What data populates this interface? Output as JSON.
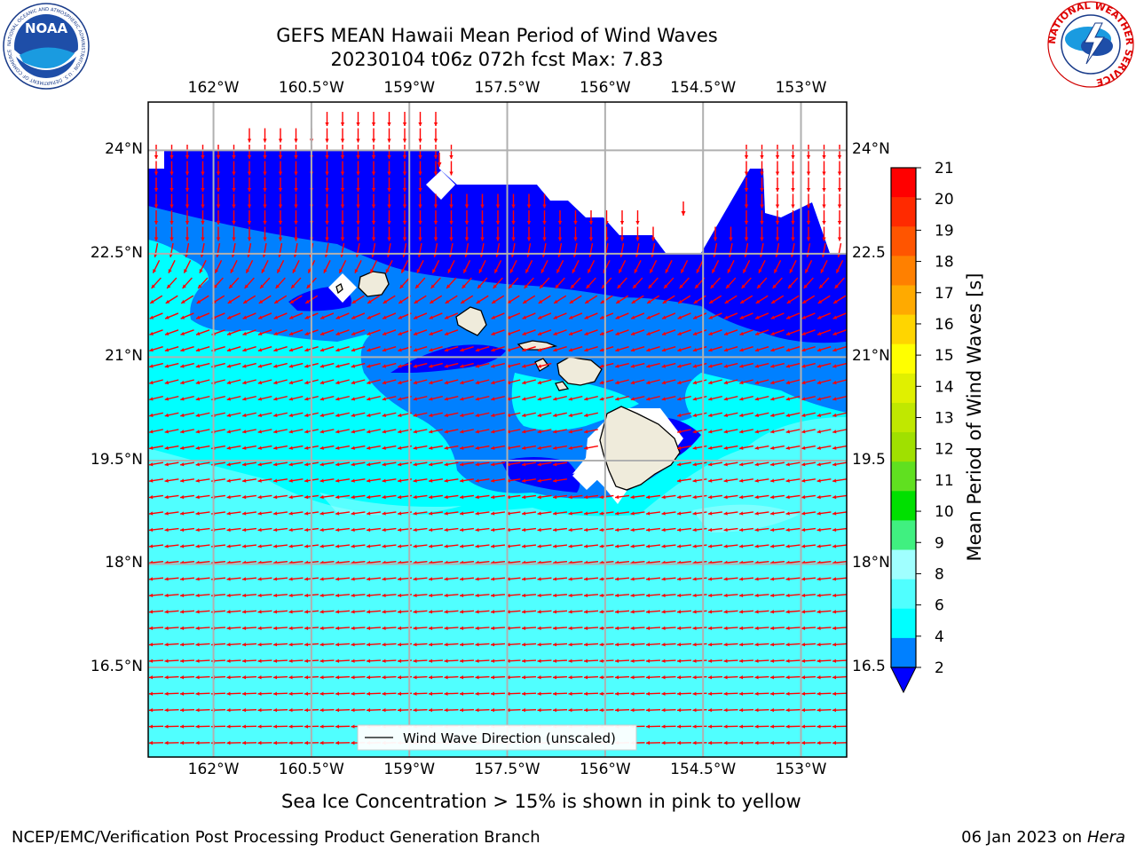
{
  "header": {
    "title_line1": "GEFS MEAN Hawaii Mean Period of Wind Waves",
    "title_line2": "20230104 t06z 072h fcst   Max: 7.83",
    "logo_left_text": "NOAA",
    "logo_left_ring": "NATIONAL OCEANIC AND ATMOSPHERIC ADMINISTRATION · U.S. DEPARTMENT OF COMMERCE",
    "logo_right_ring": "NATIONAL WEATHER SERVICE"
  },
  "map": {
    "lon_ticks": [
      "162°W",
      "160.5°W",
      "159°W",
      "157.5°W",
      "156°W",
      "154.5°W",
      "153°W"
    ],
    "lat_ticks_left": [
      "24°N",
      "22.5°N",
      "21°N",
      "19.5°N",
      "18°N",
      "16.5°N"
    ],
    "lat_ticks_right": [
      "24°N",
      "22.5",
      "21°N",
      "19.5",
      "18°N",
      "16.5"
    ],
    "legend_label": "Wind Wave Direction (unscaled)",
    "extent": {
      "lon_min": -163.0,
      "lon_max": -152.3,
      "lat_min": 15.2,
      "lat_max": 24.7
    },
    "land_color": "#efebdb",
    "arrow_color": "#ff0000"
  },
  "colorbar": {
    "label": "Mean Period of Wind Waves [s]",
    "ticks": [
      "21",
      "20",
      "19",
      "18",
      "17",
      "16",
      "15",
      "14",
      "13",
      "12",
      "11",
      "10",
      "9",
      "8",
      "6",
      "4",
      "2"
    ],
    "colors": [
      "#ff0000",
      "#ff2a00",
      "#ff5500",
      "#ff8000",
      "#ffaa00",
      "#ffd500",
      "#ffff00",
      "#e0f000",
      "#c0e800",
      "#a0e000",
      "#60e020",
      "#00e000",
      "#40f080",
      "#a0ffff",
      "#50ffff",
      "#00ffff",
      "#0080ff"
    ],
    "under_color": "#0000ff"
  },
  "footer": {
    "note": "Sea Ice Concentration > 15% is shown in pink to yellow",
    "left": "NCEP/EMC/Verification Post Processing Product Generation Branch",
    "right_date": "06 Jan 2023 on ",
    "right_host": "Hera"
  }
}
